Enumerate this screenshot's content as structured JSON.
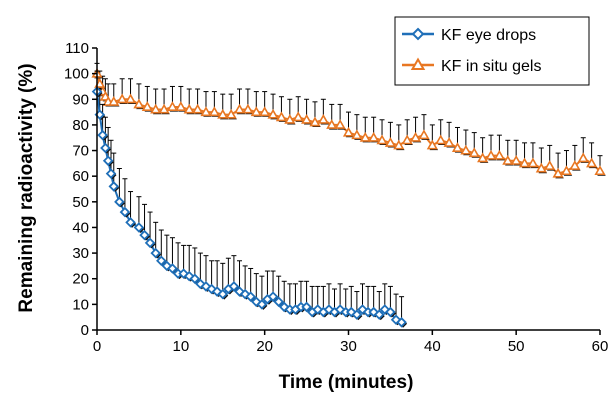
{
  "chart_data": {
    "type": "line",
    "xlabel": "Time (minutes)",
    "ylabel": "Remaining radioactivity (%)",
    "xlim": [
      0,
      60
    ],
    "ylim": [
      0,
      110
    ],
    "x_ticks": [
      "0",
      "10",
      "20",
      "30",
      "40",
      "50",
      "60"
    ],
    "y_ticks": [
      "0",
      "10",
      "20",
      "30",
      "40",
      "50",
      "60",
      "70",
      "80",
      "90",
      "100",
      "110"
    ],
    "grid": false,
    "legend_position": "top-right",
    "error_bars": "upper",
    "series": [
      {
        "name": "KF eye drops",
        "color": "#1f6fb8",
        "marker": "diamond",
        "x": [
          0,
          0.33,
          0.67,
          1,
          1.33,
          1.67,
          2,
          2.67,
          3.33,
          4,
          5,
          5.67,
          6.33,
          7,
          7.67,
          8.33,
          9,
          9.67,
          10.33,
          11,
          11.67,
          12.33,
          13,
          13.67,
          14.33,
          15,
          15.67,
          16.33,
          17,
          17.67,
          18.33,
          19,
          19.67,
          20.33,
          21,
          21.67,
          22.33,
          23,
          23.67,
          24.33,
          25,
          25.67,
          26.33,
          27,
          27.67,
          28.33,
          29,
          29.67,
          30.33,
          31,
          31.67,
          32.33,
          33,
          33.67,
          34.33,
          35,
          35.67,
          36.33
        ],
        "values": [
          93,
          84,
          76,
          71,
          66,
          61,
          56,
          50,
          46,
          42,
          40,
          37,
          34,
          30,
          27,
          25,
          24,
          22,
          22,
          21,
          20,
          18,
          17,
          16,
          15,
          14,
          16,
          17,
          15,
          14,
          13,
          11,
          10,
          12,
          13,
          11,
          9,
          8,
          8,
          9,
          9,
          7,
          8,
          7,
          8,
          7,
          8,
          7,
          7,
          6,
          8,
          7,
          7,
          6,
          8,
          7,
          4,
          3
        ],
        "errors": [
          8,
          10,
          12,
          12,
          13,
          13,
          13,
          13,
          13,
          12,
          12,
          12,
          12,
          12,
          12,
          12,
          12,
          12,
          11,
          12,
          12,
          12,
          12,
          11,
          12,
          12,
          12,
          12,
          12,
          11,
          11,
          11,
          11,
          11,
          10,
          10,
          10,
          10,
          10,
          10,
          10,
          10,
          9,
          10,
          10,
          9,
          10,
          9,
          10,
          9,
          10,
          10,
          10,
          9,
          10,
          10,
          10,
          10
        ]
      },
      {
        "name": "KF in situ gels",
        "color": "#e87722",
        "marker": "triangle",
        "x": [
          0,
          0.33,
          0.67,
          1,
          1.33,
          2,
          3,
          4,
          5,
          6,
          7,
          8,
          9,
          10,
          11,
          12,
          13,
          14,
          15,
          16,
          17,
          18,
          19,
          20,
          21,
          22,
          23,
          24,
          25,
          26,
          27,
          28,
          29,
          30,
          31,
          32,
          33,
          34,
          35,
          36,
          37,
          38,
          39,
          40,
          41,
          42,
          43,
          44,
          45,
          46,
          47,
          48,
          49,
          50,
          51,
          52,
          53,
          54,
          55,
          56,
          57,
          58,
          59,
          60
        ],
        "values": [
          100,
          96,
          93,
          91,
          89,
          89,
          90,
          90,
          88,
          87,
          86,
          86,
          87,
          87,
          86,
          86,
          85,
          85,
          84,
          84,
          86,
          86,
          85,
          85,
          84,
          83,
          82,
          83,
          82,
          81,
          82,
          80,
          80,
          77,
          76,
          75,
          75,
          74,
          73,
          72,
          74,
          75,
          76,
          72,
          74,
          73,
          71,
          70,
          69,
          67,
          68,
          68,
          66,
          66,
          65,
          65,
          63,
          64,
          61,
          62,
          64,
          67,
          65,
          62
        ],
        "errors": [
          4,
          5,
          6,
          7,
          7,
          7,
          8,
          8,
          8,
          8,
          8,
          8,
          8,
          8,
          8,
          8,
          8,
          8,
          8,
          8,
          8,
          8,
          8,
          8,
          8,
          8,
          8,
          8,
          8,
          8,
          8,
          8,
          8,
          8,
          8,
          8,
          8,
          8,
          8,
          8,
          8,
          8,
          8,
          8,
          8,
          8,
          8,
          8,
          8,
          8,
          8,
          8,
          8,
          8,
          8,
          8,
          8,
          8,
          8,
          8,
          8,
          8,
          8,
          6
        ]
      }
    ]
  }
}
